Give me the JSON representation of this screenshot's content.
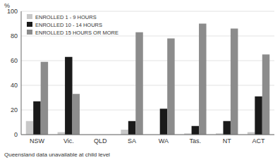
{
  "chart_data": {
    "type": "bar",
    "categories": [
      "NSW",
      "Vic.",
      "QLD",
      "SA",
      "WA",
      "Tas.",
      "NT",
      "ACT"
    ],
    "series": [
      {
        "name": "ENROLLED 1 - 9 HOURS",
        "color": "#c8c8c8",
        "values": [
          11,
          2,
          0,
          4,
          0,
          1,
          1,
          2
        ]
      },
      {
        "name": "ENROLLED 10 - 14 HOURS",
        "color": "#1a1a1a",
        "values": [
          27,
          63,
          0,
          11,
          21,
          7,
          11,
          31
        ]
      },
      {
        "name": "ENROLLED 15 HOURS OR MORE",
        "color": "#8c8c8c",
        "values": [
          59,
          33,
          0,
          83,
          78,
          90,
          86,
          65
        ]
      }
    ],
    "ylabel": "%",
    "annotations": [
      "Queensland data unavailable at child level"
    ],
    "ylim": [
      0,
      100
    ],
    "yticks": [
      0,
      20,
      40,
      60,
      80,
      100
    ],
    "grid": true,
    "legend": "upper left"
  }
}
